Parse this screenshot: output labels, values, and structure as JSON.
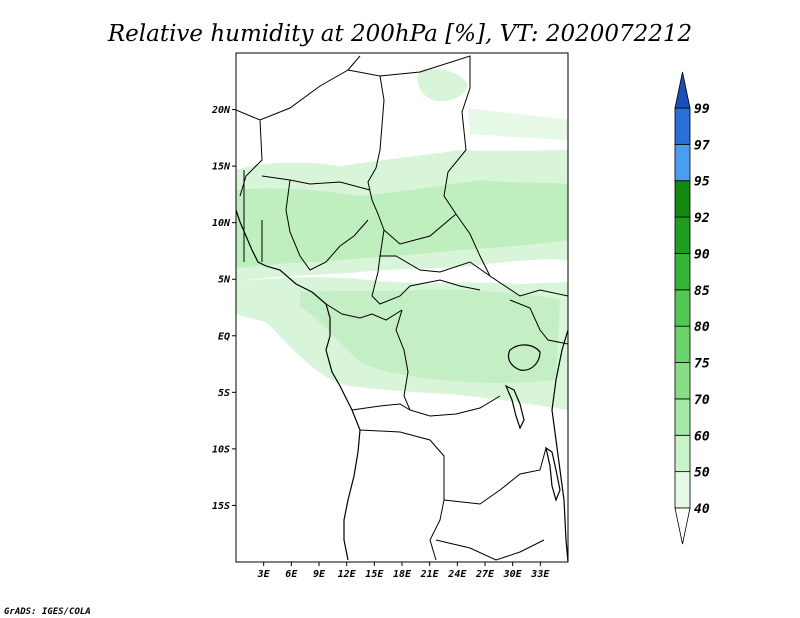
{
  "title": "Relative humidity at 200hPa [%], VT: 2020072212",
  "credit": "GrADS: IGES/COLA",
  "map": {
    "lon_range": [
      0,
      36
    ],
    "lat_range": [
      -20,
      25
    ],
    "lon_ticks": [
      "3E",
      "6E",
      "9E",
      "12E",
      "15E",
      "18E",
      "21E",
      "24E",
      "27E",
      "30E",
      "33E"
    ],
    "lat_ticks": [
      "20N",
      "15N",
      "10N",
      "5N",
      "EQ",
      "5S",
      "10S",
      "15S"
    ],
    "field": "relative humidity",
    "level": "200hPa",
    "units": "%"
  },
  "colorbar": {
    "levels": [
      "40",
      "50",
      "60",
      "70",
      "75",
      "80",
      "85",
      "90",
      "92",
      "95",
      "97",
      "99"
    ],
    "colors": [
      "#ffffff",
      "#e6f9e6",
      "#c8f2c8",
      "#a6e8a6",
      "#87de87",
      "#6cd36c",
      "#52c852",
      "#35b535",
      "#1e9e1e",
      "#0f8a0f",
      "#4a9ef0",
      "#2a6fd8",
      "#1a4fb8"
    ]
  },
  "humid_regions": [
    {
      "name": "sahel-band",
      "level": "50"
    },
    {
      "name": "central-belt",
      "level": "60"
    },
    {
      "name": "congo-basin",
      "level": "50"
    },
    {
      "name": "north-patch",
      "level": "50"
    }
  ]
}
